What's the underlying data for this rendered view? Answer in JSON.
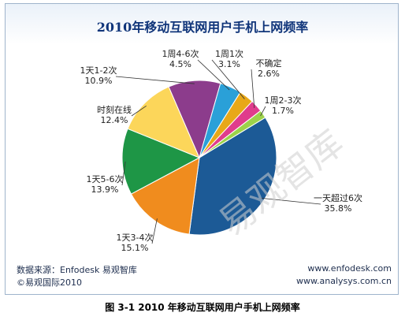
{
  "chart_data": {
    "type": "pie",
    "title": "2010年移动互联网用户手机上网频率",
    "slices": [
      {
        "label": "一天超过6次",
        "value": 35.8,
        "color": "#1c5a96"
      },
      {
        "label": "1天3-4次",
        "value": 15.1,
        "color": "#f08c1e"
      },
      {
        "label": "1天5-6次",
        "value": 13.9,
        "color": "#1e9646"
      },
      {
        "label": "时刻在线",
        "value": 12.4,
        "color": "#fcd65a"
      },
      {
        "label": "1天1-2次",
        "value": 10.9,
        "color": "#8c3c8c"
      },
      {
        "label": "1周4-6次",
        "value": 4.5,
        "color": "#2aa0d8"
      },
      {
        "label": "1周1次",
        "value": 3.1,
        "color": "#e8a818"
      },
      {
        "label": "不确定",
        "value": 2.6,
        "color": "#e03c8c"
      },
      {
        "label": "1周2-3次",
        "value": 1.7,
        "color": "#9cd24a"
      }
    ],
    "value_suffix": "%"
  },
  "source": {
    "left_line1": "数据来源：Enfodesk 易观智库",
    "left_line2": "©易观国际2010",
    "right_line1": "www.enfodesk.com",
    "right_line2": "www.analysys.com.cn"
  },
  "caption": "图 3-1 2010 年移动互联网用户手机上网频率",
  "watermark": "易观智库"
}
